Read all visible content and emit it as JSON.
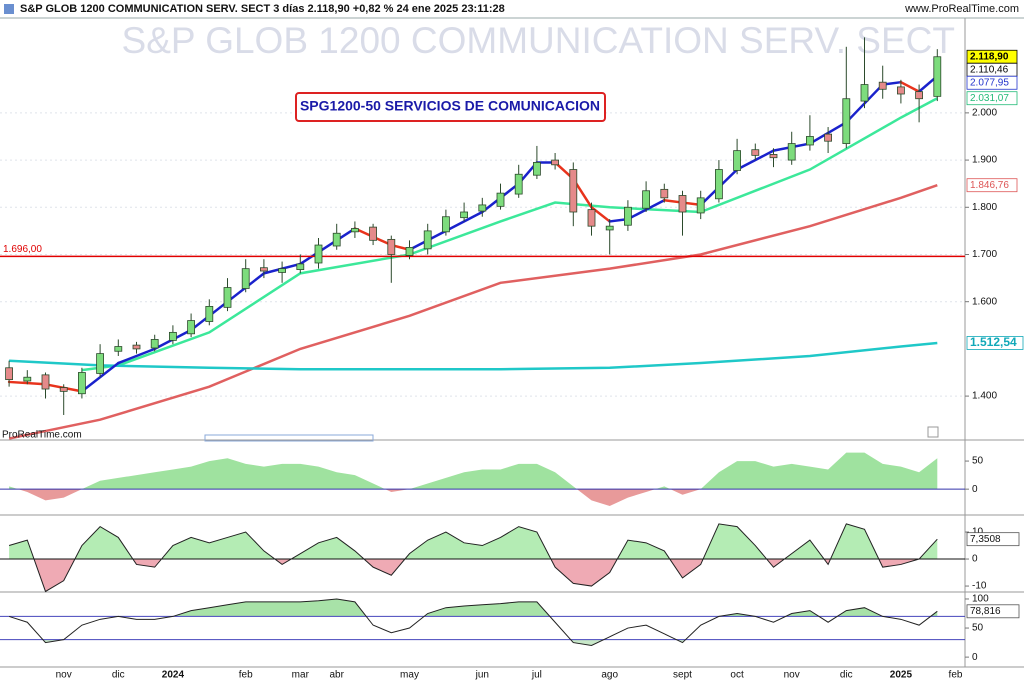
{
  "chart_data": [
    {
      "type": "candlestick",
      "title": "S&P GLOB 1200 COMMUNICATION SERV. SECT 3 días 2.118,90 +0,82 % 24 ene 2025 23:11:28",
      "source": "www.ProRealTime.com",
      "watermark": "S&P GLOB 1200 COMMUNICATION SERV. SECT",
      "annotation": "SPG1200-50 SERVICIOS DE COMUNICACION",
      "credit": "ProRealTime.com",
      "categories": [
        null,
        null,
        null,
        "nov",
        null,
        null,
        "dic",
        null,
        null,
        "2024",
        null,
        null,
        null,
        "feb",
        null,
        null,
        "mar",
        null,
        "abr",
        null,
        null,
        null,
        "may",
        null,
        null,
        null,
        "jun",
        null,
        null,
        "jul",
        null,
        null,
        null,
        "ago",
        null,
        null,
        null,
        "sept",
        null,
        null,
        "oct",
        null,
        null,
        "nov",
        null,
        null,
        "dic",
        null,
        null,
        "2025",
        null,
        null,
        "feb"
      ],
      "open": [
        1.46,
        1.432,
        1.445,
        1.418,
        1.405,
        1.448,
        1.495,
        1.508,
        1.502,
        1.518,
        1.532,
        1.558,
        1.588,
        1.628,
        1.672,
        1.662,
        1.668,
        1.682,
        1.718,
        1.748,
        1.758,
        1.732,
        1.698,
        1.712,
        1.748,
        1.778,
        1.792,
        1.802,
        1.828,
        1.868,
        1.9,
        1.88,
        1.795,
        1.752,
        1.762,
        1.798,
        1.838,
        1.825,
        1.788,
        1.818,
        1.878,
        1.922,
        1.912,
        1.9,
        1.932,
        1.955,
        1.935,
        2.025,
        2.065,
        2.055,
        2.045,
        2.035,
        null
      ],
      "high": [
        1.475,
        1.455,
        1.45,
        1.425,
        1.46,
        1.51,
        1.52,
        1.515,
        1.53,
        1.55,
        1.575,
        1.605,
        1.65,
        1.69,
        1.69,
        1.685,
        1.7,
        1.735,
        1.765,
        1.77,
        1.765,
        1.74,
        1.73,
        1.765,
        1.795,
        1.81,
        1.82,
        1.85,
        1.89,
        1.93,
        1.915,
        1.895,
        1.81,
        1.775,
        1.815,
        1.855,
        1.85,
        1.835,
        1.835,
        1.9,
        1.945,
        1.935,
        1.925,
        1.96,
        1.995,
        1.97,
        2.14,
        2.16,
        2.1,
        2.07,
        2.06,
        2.135,
        null
      ],
      "low": [
        1.42,
        1.425,
        1.395,
        1.36,
        1.395,
        1.44,
        1.485,
        1.49,
        1.495,
        1.51,
        1.525,
        1.55,
        1.58,
        1.62,
        1.65,
        1.64,
        1.66,
        1.67,
        1.71,
        1.735,
        1.72,
        1.64,
        1.69,
        1.7,
        1.74,
        1.77,
        1.78,
        1.795,
        1.82,
        1.86,
        1.88,
        1.76,
        1.74,
        1.7,
        1.75,
        1.79,
        1.81,
        1.74,
        1.775,
        1.81,
        1.87,
        1.9,
        1.885,
        1.89,
        1.92,
        1.915,
        1.925,
        2.01,
        2.03,
        2.02,
        1.98,
        2.025,
        null
      ],
      "close": [
        1.435,
        1.44,
        1.415,
        1.41,
        1.45,
        1.49,
        1.505,
        1.5,
        1.52,
        1.535,
        1.56,
        1.59,
        1.63,
        1.67,
        1.665,
        1.67,
        1.68,
        1.72,
        1.745,
        1.755,
        1.73,
        1.7,
        1.715,
        1.75,
        1.78,
        1.79,
        1.805,
        1.83,
        1.87,
        1.895,
        1.89,
        1.79,
        1.76,
        1.76,
        1.8,
        1.835,
        1.82,
        1.79,
        1.82,
        1.88,
        1.92,
        1.91,
        1.905,
        1.935,
        1.95,
        1.94,
        2.03,
        2.06,
        2.05,
        2.04,
        2.03,
        2.1189,
        null
      ],
      "up_color": "#7ddc7d",
      "down_color": "#e58a8a",
      "edge_color": "#2b4a2b",
      "series": [
        {
          "color": "#3ce89a",
          "x": [
            4,
            6,
            11,
            16,
            22,
            27,
            30,
            33,
            38,
            44,
            49,
            51
          ],
          "values": [
            1.455,
            1.465,
            1.535,
            1.66,
            1.7,
            1.77,
            1.81,
            1.8,
            1.79,
            1.88,
            1.99,
            2.03107
          ]
        },
        {
          "color": "#e06060",
          "x": [
            0,
            5,
            11,
            16,
            22,
            27,
            33,
            38,
            44,
            49,
            51
          ],
          "values": [
            1.31,
            1.35,
            1.42,
            1.5,
            1.57,
            1.64,
            1.67,
            1.7,
            1.76,
            1.82,
            1.84676
          ]
        },
        {
          "color": "#1fc8c8",
          "x": [
            0,
            5,
            11,
            16,
            22,
            27,
            33,
            38,
            44,
            49,
            51
          ],
          "values": [
            1.475,
            1.465,
            1.46,
            1.457,
            1.457,
            1.457,
            1.46,
            1.47,
            1.485,
            1.505,
            1.51254
          ]
        },
        {
          "color": "#1a22cc",
          "down_color": "#e8331c",
          "x": [
            0,
            2,
            4,
            6,
            8,
            10,
            12,
            14,
            16,
            18,
            19,
            21,
            22,
            24,
            26,
            28,
            29,
            30,
            31,
            32,
            33,
            34,
            36,
            37,
            38,
            40,
            42,
            44,
            46,
            48,
            49,
            50,
            51
          ],
          "values": [
            1.43,
            1.425,
            1.41,
            1.47,
            1.5,
            1.54,
            1.6,
            1.66,
            1.68,
            1.73,
            1.755,
            1.72,
            1.71,
            1.75,
            1.79,
            1.85,
            1.895,
            1.895,
            1.86,
            1.8,
            1.77,
            1.775,
            1.815,
            1.81,
            1.805,
            1.88,
            1.92,
            1.935,
            1.98,
            2.06,
            2.065,
            2.045,
            2.07795
          ]
        }
      ],
      "hlines": [
        {
          "value": 1.696,
          "label": "1.696,00",
          "color": "#e00000"
        }
      ],
      "price_labels": [
        {
          "value": 2.1189,
          "label": "2.118,90",
          "color": "#000000",
          "fill": "#ffff00"
        },
        {
          "value": 2.11046,
          "label": "2.110,46",
          "color": "#000000",
          "fill": "#ffffff"
        },
        {
          "value": 2.07795,
          "label": "2.077,95",
          "color": "#2233cc",
          "fill": "#ffffff"
        },
        {
          "value": 2.03107,
          "label": "2.031,07",
          "color": "#22bb77",
          "fill": "#ffffff"
        },
        {
          "value": 1.84676,
          "label": "1.846,76",
          "color": "#dd5555",
          "fill": "#ffffff"
        },
        {
          "value": 1.51254,
          "label": "1.512,54",
          "color": "#11a8b8",
          "fill": "#ffffff"
        }
      ],
      "ylim": [
        1.307,
        2.201
      ],
      "yticks": [
        {
          "value": 1.4,
          "label": "1.400"
        },
        {
          "value": 1.6,
          "label": "1.600"
        },
        {
          "value": 1.7,
          "label": "1.700"
        },
        {
          "value": 1.8,
          "label": "1.800"
        },
        {
          "value": 1.9,
          "label": "1.900"
        },
        {
          "value": 2.0,
          "label": "2.000"
        }
      ],
      "grid": true
    },
    {
      "type": "oscillator",
      "values": [
        5,
        -5,
        -20,
        -15,
        0,
        15,
        20,
        25,
        30,
        35,
        40,
        50,
        55,
        45,
        40,
        45,
        45,
        40,
        30,
        25,
        10,
        -5,
        0,
        10,
        20,
        30,
        35,
        35,
        45,
        45,
        30,
        5,
        -20,
        -30,
        -15,
        -5,
        5,
        -10,
        0,
        30,
        50,
        50,
        40,
        45,
        40,
        35,
        65,
        65,
        45,
        40,
        30,
        55,
        null
      ],
      "ylim": [
        -46,
        87.5
      ],
      "yticks": [
        0,
        50
      ],
      "levels": [
        0
      ],
      "level_color": "#3333aa",
      "fill_above": "#9fe29f",
      "fill_below": "#e89a9a"
    },
    {
      "type": "oscillator",
      "values": [
        5,
        7,
        -12,
        -8,
        5,
        12,
        8,
        -2,
        -3,
        5,
        8,
        6,
        8,
        10,
        3,
        -2,
        2,
        6,
        8,
        3,
        -3,
        -6,
        2,
        7,
        10,
        6,
        5,
        8,
        12,
        10,
        -3,
        -9,
        -10,
        -5,
        7,
        6,
        3,
        -7,
        -2,
        13,
        12,
        5,
        -3,
        2,
        7,
        -2,
        13,
        11,
        -3,
        -2,
        0,
        7.3508,
        null
      ],
      "ylim": [
        -12.2,
        16.3
      ],
      "yticks": [
        -10,
        0,
        10
      ],
      "levels": [
        0
      ],
      "level_color": "#111111",
      "line_color": "#222222",
      "fill_above": "#b4ecb4",
      "fill_below": "#efaab4",
      "value_label": "7,3508"
    },
    {
      "type": "oscillator",
      "values": [
        70,
        60,
        25,
        30,
        55,
        65,
        70,
        65,
        65,
        70,
        80,
        85,
        90,
        95,
        95,
        95,
        95,
        97,
        100,
        95,
        55,
        42,
        50,
        75,
        85,
        88,
        90,
        92,
        95,
        95,
        60,
        25,
        20,
        35,
        50,
        55,
        40,
        25,
        55,
        70,
        75,
        70,
        60,
        75,
        80,
        60,
        80,
        85,
        70,
        65,
        55,
        78.816,
        null
      ],
      "ylim": [
        -17,
        112
      ],
      "yticks": [
        0,
        50,
        100
      ],
      "levels": [
        70,
        30
      ],
      "level_color": "#4444bb",
      "line_color": "#222222",
      "fill_above": "#a8e2a8",
      "fill_below": "#c8e8c8",
      "value_label": "78,816"
    }
  ]
}
